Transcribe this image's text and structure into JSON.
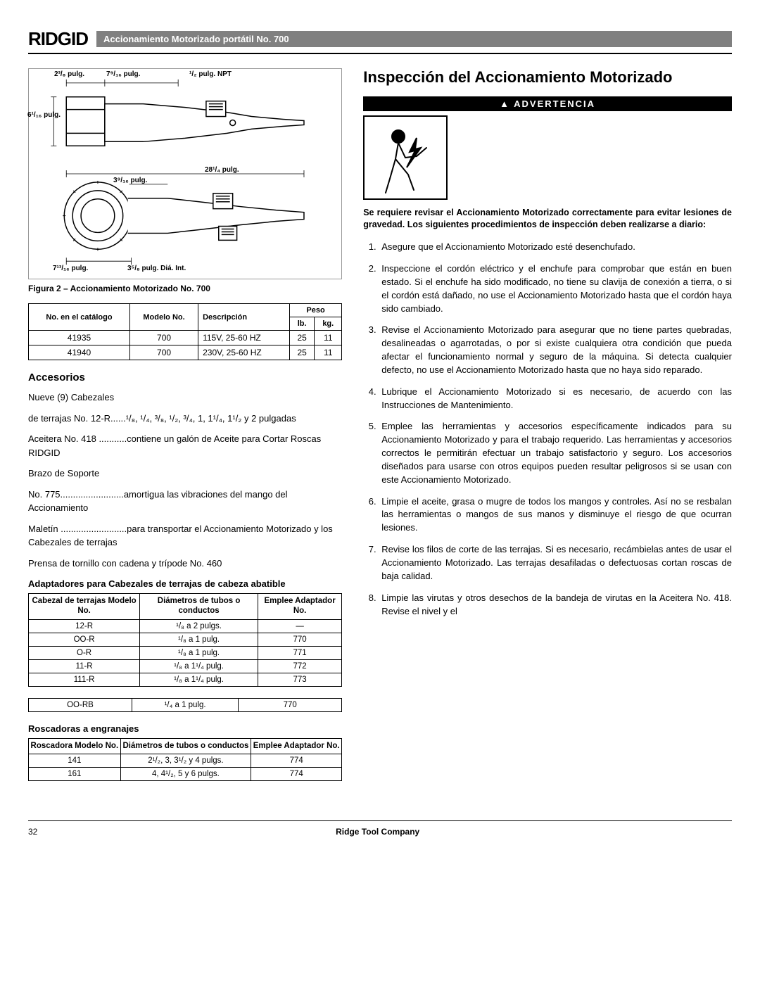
{
  "header": {
    "logo": "RIDGID",
    "title": "Accionamiento Motorizado portátil No. 700"
  },
  "diagram": {
    "dims": {
      "top_left": "2³/₈ pulg.",
      "top_mid": "7⁹/₁₆ pulg.",
      "top_right": "¹/₂ pulg. NPT",
      "left": "6¹/₁₆ pulg.",
      "mid": "3⁹/₁₆ pulg.",
      "total": "28¹/₄ pulg.",
      "bottom_left": "7¹³/₁₆ pulg.",
      "bottom_right": "3⁵/₈ pulg. Diá. Int."
    },
    "caption": "Figura 2 – Accionamiento Motorizado No. 700"
  },
  "spec_table": {
    "headers": {
      "cat": "No. en el catálogo",
      "model": "Modelo No.",
      "desc": "Descripción",
      "weight": "Peso",
      "lb": "lb.",
      "kg": "kg."
    },
    "rows": [
      {
        "cat": "41935",
        "model": "700",
        "desc": "115V, 25-60 HZ",
        "lb": "25",
        "kg": "11"
      },
      {
        "cat": "41940",
        "model": "700",
        "desc": "230V, 25-60 HZ",
        "lb": "25",
        "kg": "11"
      }
    ]
  },
  "accessories": {
    "title": "Accesorios",
    "items": [
      "Nueve (9) Cabezales",
      "de terrajas No. 12-R......¹/₈, ¹/₄, ³/₈, ¹/₂, ³/₄, 1, 1¹/₄, 1¹/₂ y 2 pulgadas",
      "Aceitera No. 418 ...........contiene un galón de Aceite para Cortar Roscas RIDGID",
      "Brazo de Soporte",
      "No. 775.........................amortigua las vibraciones del mango del Accionamiento",
      "Maletín ..........................para transportar el Accionamiento Motorizado y los Cabezales de terrajas",
      "Prensa de tornillo con cadena y trípode No. 460"
    ]
  },
  "adapters": {
    "title": "Adaptadores para Cabezales de terrajas de cabeza abatible",
    "headers": {
      "model": "Cabezal de terrajas Modelo No.",
      "diam": "Diámetros de tubos o conductos",
      "adapter": "Emplee Adaptador No."
    },
    "rows": [
      {
        "model": "12-R",
        "diam": "¹/₈ a 2 pulgs.",
        "adapter": "—"
      },
      {
        "model": "OO-R",
        "diam": "¹/₈ a 1 pulg.",
        "adapter": "770"
      },
      {
        "model": "O-R",
        "diam": "¹/₈ a 1 pulg.",
        "adapter": "771"
      },
      {
        "model": "11-R",
        "diam": "¹/₈ a 1¹/₄ pulg.",
        "adapter": "772"
      },
      {
        "model": "111-R",
        "diam": "¹/₈ a 1¹/₄ pulg.",
        "adapter": "773"
      }
    ],
    "extra_row": {
      "model": "OO-RB",
      "diam": "¹/₄ a 1 pulg.",
      "adapter": "770"
    }
  },
  "geared": {
    "title": "Roscadoras a engranajes",
    "headers": {
      "model": "Roscadora Modelo No.",
      "diam": "Diámetros de tubos o conductos",
      "adapter": "Emplee Adaptador No."
    },
    "rows": [
      {
        "model": "141",
        "diam": "2¹/₂, 3, 3¹/₂ y 4 pulgs.",
        "adapter": "774"
      },
      {
        "model": "161",
        "diam": "4, 4¹/₂, 5 y 6 pulgs.",
        "adapter": "774"
      }
    ]
  },
  "inspection": {
    "title": "Inspección del Accionamiento Motorizado",
    "warning_label": "▲ ADVERTENCIA",
    "warning_text": "Se requiere revisar el Accionamiento Motorizado correctamente para evitar lesiones de gravedad. Los siguientes procedimientos de inspección deben realizarse a diario:",
    "steps": [
      "Asegure que el Accionamiento Motorizado esté desenchufado.",
      "Inspeccione el cordón eléctrico y el enchufe para comprobar que están en buen estado. Si el enchufe ha sido modificado, no tiene su clavija de conexión a tierra, o si el cordón está dañado, no use el Accionamiento Motorizado hasta que el cordón haya sido cambiado.",
      "Revise el Accionamiento Motorizado para asegurar que no tiene partes quebradas, desalineadas o agarrotadas, o por si existe cualquiera otra condición que pueda afectar el funcionamiento normal y seguro de la máquina. Si detecta cualquier defecto, no use el Accionamiento Motorizado hasta que no haya sido reparado.",
      "Lubrique el Accionamiento Motorizado si es necesario, de acuerdo con las Instrucciones de Mantenimiento.",
      "Emplee las herramientas y accesorios específicamente indicados para su Accionamiento Motorizado y para el trabajo requerido. Las herramientas y accesorios correctos le permitirán efectuar un trabajo satisfactorio y seguro. Los accesorios diseñados para usarse con otros equipos pueden resultar peligrosos si se usan con este Accionamiento Motorizado.",
      "Limpie el aceite, grasa o mugre de todos los mangos y controles. Así no se resbalan las herramientas o mangos de sus manos y disminuye el riesgo de que ocurran lesiones.",
      "Revise los filos de corte de las terrajas. Si es necesario, recámbielas antes de usar el Accionamiento Motorizado. Las terrajas desafiladas o defectuosas cortan roscas de baja calidad.",
      "Limpie las virutas y otros desechos de la bandeja de virutas en la Aceitera No. 418. Revise el nivel y el"
    ]
  },
  "footer": {
    "page": "32",
    "company": "Ridge Tool Company"
  }
}
